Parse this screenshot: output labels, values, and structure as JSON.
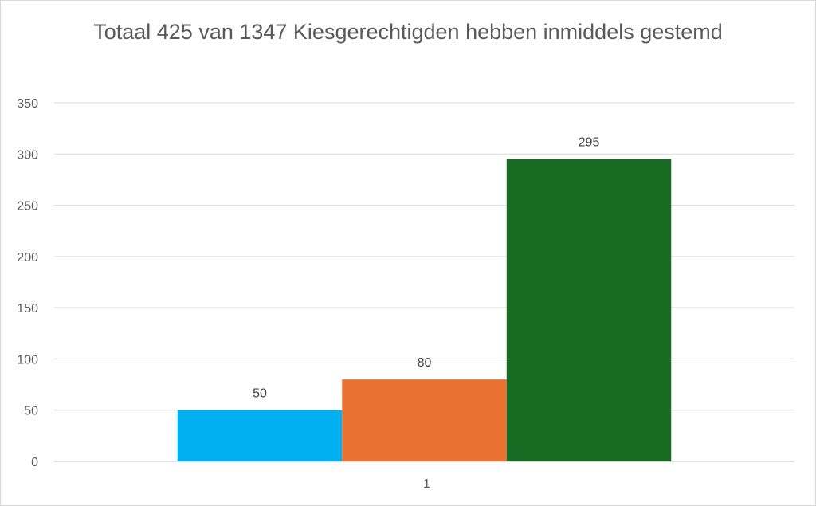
{
  "chart_data": {
    "type": "bar",
    "title": "Totaal 425 van 1347 Kiesgerechtigden hebben inmiddels gestemd",
    "categories": [
      "1"
    ],
    "series": [
      {
        "values": [
          50
        ],
        "color": "#00B0F0"
      },
      {
        "values": [
          80
        ],
        "color": "#E97132"
      },
      {
        "values": [
          295
        ],
        "color": "#196B24"
      }
    ],
    "ylim": [
      0,
      350
    ],
    "yticks": [
      0,
      50,
      100,
      150,
      200,
      250,
      300,
      350
    ],
    "grid": true,
    "data_labels": true,
    "xlabel": "",
    "ylabel": ""
  }
}
